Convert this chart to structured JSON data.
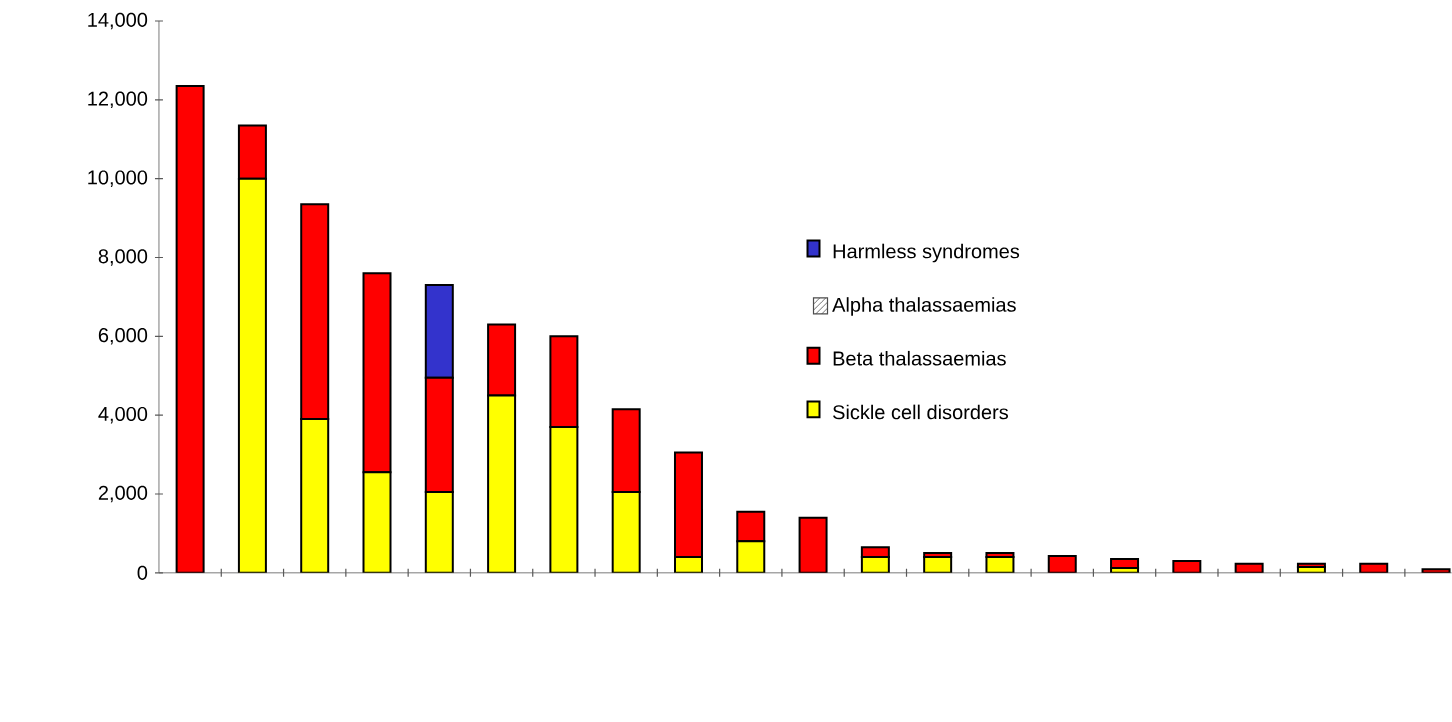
{
  "chart_data": {
    "type": "bar",
    "stacked": true,
    "categories": [
      null,
      null,
      null,
      null,
      null,
      null,
      null,
      null,
      null,
      null,
      null,
      null,
      null,
      null,
      null,
      null,
      null,
      null,
      null,
      null,
      null
    ],
    "series": [
      {
        "name": "Sickle cell disorders",
        "color": "#ffff00",
        "values": [
          0,
          10000,
          3900,
          2550,
          2050,
          4500,
          3700,
          2050,
          400,
          800,
          0,
          400,
          400,
          400,
          0,
          120,
          0,
          0,
          150,
          0,
          0
        ]
      },
      {
        "name": "Beta thalassaemias",
        "color": "#ff0000",
        "values": [
          12350,
          1350,
          5450,
          5050,
          2900,
          1800,
          2300,
          2100,
          2650,
          750,
          1400,
          250,
          100,
          100,
          430,
          230,
          300,
          230,
          80,
          230,
          90
        ]
      },
      {
        "name": "Alpha thalassaemias",
        "color": "#4c4c4c",
        "values": [
          null,
          null,
          null,
          null,
          null,
          null,
          null,
          null,
          null,
          null,
          null,
          null,
          null,
          null,
          null,
          null,
          null,
          null,
          null,
          null,
          null
        ]
      },
      {
        "name": "Harmless syndromes",
        "color": "#3333cc",
        "values": [
          0,
          0,
          0,
          0,
          2350,
          0,
          0,
          0,
          0,
          0,
          0,
          0,
          0,
          0,
          0,
          0,
          0,
          0,
          0,
          0,
          0
        ]
      }
    ],
    "ylim": [
      0,
      14000
    ],
    "yticks": [
      0,
      {
        "value": 2000,
        "label": "2,000"
      },
      {
        "value": 4000,
        "label": "4,000"
      },
      {
        "value": 6000,
        "label": "6,000"
      },
      {
        "value": 8000,
        "label": "8,000"
      },
      {
        "value": 10000,
        "label": "10,000"
      },
      {
        "value": 12000,
        "label": "12,000"
      },
      {
        "value": 14000,
        "label": "14,000"
      }
    ],
    "legend": "right"
  }
}
